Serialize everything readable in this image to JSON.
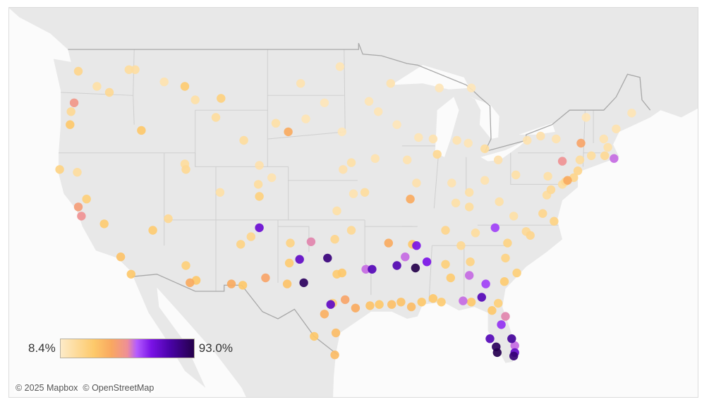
{
  "legend": {
    "min_label": "8.4%",
    "max_label": "93.0%",
    "min_value": 8.4,
    "max_value": 93.0,
    "gradient_stops": [
      {
        "at": 0.0,
        "color": "#fdebc8"
      },
      {
        "at": 0.25,
        "color": "#fdc96a"
      },
      {
        "at": 0.38,
        "color": "#f9a860"
      },
      {
        "at": 0.5,
        "color": "#ee8f96"
      },
      {
        "at": 0.57,
        "color": "#b45cff"
      },
      {
        "at": 0.68,
        "color": "#7a12e6"
      },
      {
        "at": 0.82,
        "color": "#4a02a8"
      },
      {
        "at": 1.0,
        "color": "#24004a"
      }
    ]
  },
  "attribution": {
    "mapbox": "© 2025 Mapbox",
    "osm": "© OpenStreetMap"
  },
  "basemap_colors": {
    "land": "#e8e8e8",
    "water": "#fbfbfb",
    "border": "#a8a8a8",
    "state_line": "#cfcfcf"
  },
  "points": [
    [
      -104.8,
      36.4,
      70
    ],
    [
      -100.9,
      33.9,
      72
    ],
    [
      -100.5,
      32.0,
      90
    ],
    [
      -98.2,
      34.0,
      85
    ],
    [
      -97.9,
      30.2,
      72
    ],
    [
      -99.8,
      35.3,
      52
    ],
    [
      -93.9,
      33.1,
      75
    ],
    [
      -91.5,
      33.4,
      76
    ],
    [
      -89.7,
      33.2,
      93
    ],
    [
      -89.6,
      35.0,
      66
    ],
    [
      -88.6,
      33.7,
      66
    ],
    [
      -90.7,
      34.1,
      55
    ],
    [
      -94.5,
      33.1,
      55
    ],
    [
      -84.5,
      32.6,
      55
    ],
    [
      -82.9,
      31.9,
      60
    ],
    [
      -83.3,
      30.8,
      75
    ],
    [
      -85.1,
      30.5,
      55
    ],
    [
      -82.0,
      36.4,
      60
    ],
    [
      -81.9,
      26.6,
      90
    ],
    [
      -81.8,
      26.1,
      92
    ],
    [
      -80.2,
      25.8,
      86
    ],
    [
      -80.1,
      26.1,
      72
    ],
    [
      -80.1,
      26.7,
      55
    ],
    [
      -80.4,
      27.3,
      80
    ],
    [
      -82.5,
      27.3,
      75
    ],
    [
      -81.4,
      28.5,
      62
    ],
    [
      -81.0,
      29.2,
      52
    ],
    [
      -75.5,
      41.4,
      50
    ],
    [
      -70.5,
      41.6,
      55
    ],
    [
      -122.7,
      45.5,
      48
    ],
    [
      -122.3,
      38.0,
      45
    ],
    [
      -122.0,
      37.3,
      50
    ],
    [
      -73.7,
      42.7,
      42
    ],
    [
      -75.0,
      40.0,
      40
    ],
    [
      -102.0,
      43.5,
      40
    ],
    [
      -111.5,
      32.0,
      40
    ],
    [
      -107.5,
      31.9,
      40
    ],
    [
      -104.2,
      32.4,
      42
    ],
    [
      -92.3,
      35.2,
      40
    ],
    [
      -90.2,
      38.6,
      40
    ],
    [
      -96.5,
      30.6,
      42
    ],
    [
      -95.5,
      29.9,
      40
    ],
    [
      -98.5,
      29.4,
      38
    ],
    [
      -122.3,
      47.6,
      22
    ],
    [
      -117.4,
      47.7,
      18
    ],
    [
      -116.2,
      43.6,
      30
    ],
    [
      -112.0,
      46.6,
      28
    ],
    [
      -108.5,
      45.8,
      25
    ],
    [
      -106.6,
      35.1,
      24
    ],
    [
      -111.9,
      33.4,
      26
    ],
    [
      -110.9,
      32.2,
      30
    ],
    [
      -115.1,
      36.2,
      28
    ],
    [
      -111.9,
      40.8,
      20
    ],
    [
      -104.9,
      39.7,
      18
    ],
    [
      -104.8,
      38.8,
      25
    ],
    [
      -118.2,
      34.1,
      32
    ],
    [
      -117.2,
      32.7,
      30
    ],
    [
      -119.8,
      36.7,
      28
    ],
    [
      -121.5,
      38.6,
      26
    ],
    [
      -123.0,
      44.9,
      20
    ],
    [
      -123.1,
      44.0,
      30
    ],
    [
      -124.1,
      40.8,
      24
    ],
    [
      -122.4,
      40.6,
      18
    ],
    [
      -120.5,
      46.6,
      16
    ],
    [
      -119.3,
      46.2,
      20
    ],
    [
      -96.8,
      32.8,
      30
    ],
    [
      -97.3,
      32.7,
      28
    ],
    [
      -97.5,
      35.5,
      22
    ],
    [
      -95.9,
      36.2,
      20
    ],
    [
      -97.3,
      37.7,
      16
    ],
    [
      -94.6,
      39.1,
      18
    ],
    [
      -95.7,
      39.0,
      14
    ],
    [
      -96.7,
      40.8,
      15
    ],
    [
      -95.9,
      41.3,
      16
    ],
    [
      -93.6,
      41.6,
      14
    ],
    [
      -93.3,
      44.9,
      13
    ],
    [
      -92.1,
      46.8,
      14
    ],
    [
      -96.8,
      43.5,
      12
    ],
    [
      -100.8,
      46.8,
      14
    ],
    [
      -97.0,
      47.9,
      13
    ],
    [
      -103.2,
      44.1,
      16
    ],
    [
      -106.3,
      42.9,
      18
    ],
    [
      -104.8,
      41.1,
      15
    ],
    [
      -101.8,
      35.2,
      24
    ],
    [
      -101.9,
      33.6,
      28
    ],
    [
      -102.1,
      31.9,
      32
    ],
    [
      -106.4,
      31.8,
      30
    ],
    [
      -97.4,
      27.8,
      34
    ],
    [
      -97.5,
      25.9,
      34
    ],
    [
      -99.5,
      27.5,
      30
    ],
    [
      -97.7,
      30.3,
      26
    ],
    [
      -94.1,
      30.1,
      32
    ],
    [
      -93.2,
      30.2,
      30
    ],
    [
      -92.0,
      30.2,
      33
    ],
    [
      -91.1,
      30.4,
      32
    ],
    [
      -90.1,
      30.0,
      34
    ],
    [
      -89.1,
      30.4,
      30
    ],
    [
      -88.0,
      30.7,
      30
    ],
    [
      -87.2,
      30.4,
      28
    ],
    [
      -86.8,
      33.5,
      26
    ],
    [
      -86.3,
      32.4,
      28
    ],
    [
      -84.4,
      33.7,
      24
    ],
    [
      -81.1,
      32.1,
      28
    ],
    [
      -81.7,
      30.3,
      26
    ],
    [
      -82.3,
      29.7,
      30
    ],
    [
      -84.3,
      30.4,
      30
    ],
    [
      -90.0,
      35.1,
      30
    ],
    [
      -86.8,
      36.2,
      22
    ],
    [
      -85.3,
      35.0,
      20
    ],
    [
      -83.9,
      36.0,
      18
    ],
    [
      -85.8,
      38.3,
      16
    ],
    [
      -84.5,
      39.1,
      16
    ],
    [
      -84.5,
      38.0,
      18
    ],
    [
      -83.0,
      40.0,
      14
    ],
    [
      -81.7,
      41.5,
      15
    ],
    [
      -86.2,
      39.8,
      14
    ],
    [
      -87.6,
      41.9,
      20
    ],
    [
      -89.6,
      39.8,
      15
    ],
    [
      -88.0,
      43.0,
      14
    ],
    [
      -89.4,
      43.1,
      13
    ],
    [
      -83.0,
      42.3,
      18
    ],
    [
      -85.7,
      42.9,
      14
    ],
    [
      -84.6,
      42.7,
      13
    ],
    [
      -87.4,
      46.5,
      12
    ],
    [
      -84.3,
      46.5,
      12
    ],
    [
      -80.0,
      40.4,
      16
    ],
    [
      -77.0,
      38.9,
      18
    ],
    [
      -76.6,
      39.3,
      20
    ],
    [
      -77.4,
      37.5,
      22
    ],
    [
      -76.3,
      36.9,
      24
    ],
    [
      -78.6,
      35.8,
      22
    ],
    [
      -80.8,
      35.2,
      24
    ],
    [
      -79.9,
      32.8,
      26
    ],
    [
      -81.0,
      34.0,
      24
    ],
    [
      -79.0,
      36.1,
      20
    ],
    [
      -80.2,
      37.3,
      16
    ],
    [
      -81.6,
      38.4,
      16
    ],
    [
      -74.0,
      40.7,
      22
    ],
    [
      -73.8,
      41.5,
      18
    ],
    [
      -76.1,
      43.0,
      14
    ],
    [
      -77.6,
      43.2,
      15
    ],
    [
      -78.9,
      42.9,
      14
    ],
    [
      -73.2,
      44.5,
      12
    ],
    [
      -71.1,
      42.4,
      16
    ],
    [
      -71.4,
      41.8,
      20
    ],
    [
      -72.7,
      41.8,
      18
    ],
    [
      -70.3,
      43.7,
      14
    ],
    [
      -68.8,
      44.8,
      13
    ],
    [
      -71.5,
      43.0,
      14
    ],
    [
      -75.2,
      39.9,
      20
    ],
    [
      -74.4,
      40.2,
      22
    ],
    [
      -76.9,
      40.3,
      16
    ],
    [
      -75.5,
      39.7,
      18
    ],
    [
      -90.5,
      41.5,
      14
    ],
    [
      -91.5,
      44.0,
      12
    ],
    [
      -94.2,
      45.6,
      13
    ],
    [
      -98.5,
      45.5,
      12
    ],
    [
      -100.3,
      44.4,
      13
    ],
    [
      -109.0,
      44.5,
      18
    ],
    [
      -114.0,
      46.9,
      14
    ],
    [
      -111.0,
      45.7,
      16
    ],
    [
      -116.8,
      47.7,
      17
    ],
    [
      -108.6,
      39.1,
      16
    ],
    [
      -113.6,
      37.1,
      20
    ],
    [
      -112.0,
      41.2,
      18
    ],
    [
      -105.6,
      35.7,
      22
    ],
    [
      -103.6,
      40.2,
      14
    ]
  ]
}
